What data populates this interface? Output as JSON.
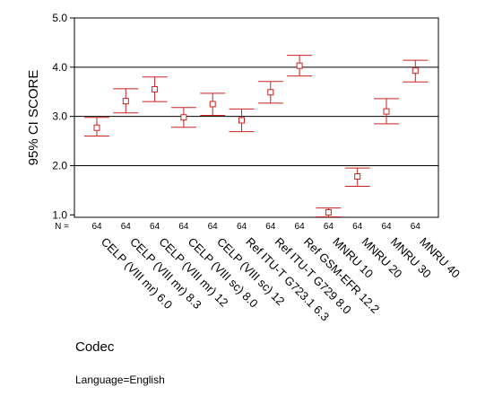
{
  "chart_data": {
    "type": "scatter",
    "subtype": "error-bar",
    "ylabel": "95% CI SCORE",
    "xlabel": "Codec",
    "footnote": "Language=English",
    "n_label": "N =",
    "ylim": [
      0.95,
      5.0
    ],
    "yticks": [
      "1.0",
      "2.0",
      "3.0",
      "4.0",
      "5.0"
    ],
    "gridlines": [
      2.0,
      3.0,
      4.0
    ],
    "colors": {
      "error_bar": "#cc2222",
      "axis": "#000000"
    },
    "categories": [
      "CELP (VIII mr) 6.0",
      "CELP (VIII mr) 8.3",
      "CELP (VIII mr) 12",
      "CELP (VIII sc) 8.0",
      "CELP (VIII sc) 12",
      "Ref ITU-T G723.1 6.3",
      "Ref ITU-T G729 8.0",
      "Ref GSM-EFR 12.2",
      "MNRU 10",
      "MNRU 20",
      "MNRU 30",
      "MNRU 40"
    ],
    "n": [
      "64",
      "64",
      "64",
      "64",
      "64",
      "64",
      "64",
      "64",
      "64",
      "64",
      "64",
      "64"
    ],
    "mean": [
      2.77,
      3.31,
      3.55,
      2.98,
      3.25,
      2.92,
      3.49,
      4.03,
      1.05,
      1.78,
      3.1,
      3.93
    ],
    "lower": [
      2.6,
      3.07,
      3.3,
      2.78,
      3.02,
      2.69,
      3.27,
      3.82,
      0.96,
      1.58,
      2.85,
      3.7
    ],
    "upper": [
      2.98,
      3.56,
      3.8,
      3.18,
      3.47,
      3.15,
      3.71,
      4.24,
      1.14,
      1.95,
      3.36,
      4.14
    ]
  }
}
